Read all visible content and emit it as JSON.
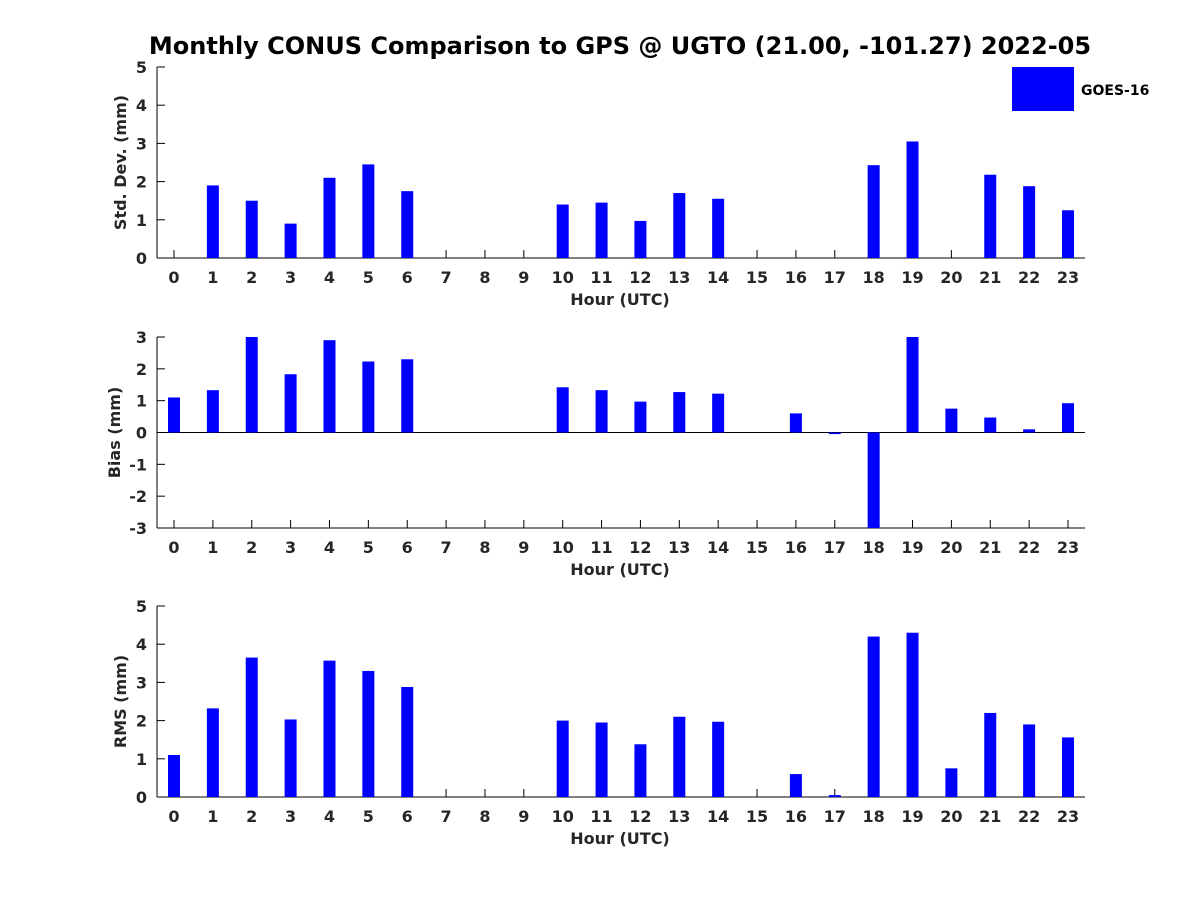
{
  "title": "Monthly CONUS Comparison to GPS @ UGTO (21.00, -101.27) 2022-05",
  "legend": {
    "label": "GOES-16",
    "color": "#0000ff"
  },
  "chart_data": [
    {
      "type": "bar",
      "xlabel": "Hour (UTC)",
      "ylabel": "Std. Dev. (mm)",
      "ylim": [
        0,
        5
      ],
      "yticks": [
        "0",
        "1",
        "2",
        "3",
        "4",
        "5"
      ],
      "categories": [
        "0",
        "1",
        "2",
        "3",
        "4",
        "5",
        "6",
        "7",
        "8",
        "9",
        "10",
        "11",
        "12",
        "13",
        "14",
        "15",
        "16",
        "17",
        "18",
        "19",
        "20",
        "21",
        "22",
        "23"
      ],
      "series": [
        {
          "name": "GOES-16",
          "values": [
            null,
            1.9,
            1.5,
            0.9,
            2.1,
            2.45,
            1.75,
            null,
            null,
            null,
            1.4,
            1.45,
            0.97,
            1.7,
            1.55,
            null,
            null,
            null,
            2.43,
            3.05,
            null,
            2.18,
            1.88,
            1.25
          ]
        }
      ]
    },
    {
      "type": "bar",
      "xlabel": "Hour (UTC)",
      "ylabel": "Bias (mm)",
      "ylim": [
        -3,
        3
      ],
      "yticks": [
        "-3",
        "-2",
        "-1",
        "0",
        "1",
        "2",
        "3"
      ],
      "categories": [
        "0",
        "1",
        "2",
        "3",
        "4",
        "5",
        "6",
        "7",
        "8",
        "9",
        "10",
        "11",
        "12",
        "13",
        "14",
        "15",
        "16",
        "17",
        "18",
        "19",
        "20",
        "21",
        "22",
        "23"
      ],
      "series": [
        {
          "name": "GOES-16",
          "values": [
            1.1,
            1.33,
            3.0,
            1.83,
            2.9,
            2.23,
            2.3,
            null,
            null,
            null,
            1.42,
            1.33,
            0.97,
            1.27,
            1.22,
            null,
            0.6,
            -0.05,
            -3.0,
            3.0,
            0.75,
            0.47,
            0.1,
            0.92
          ]
        }
      ]
    },
    {
      "type": "bar",
      "xlabel": "Hour (UTC)",
      "ylabel": "RMS (mm)",
      "ylim": [
        0,
        5
      ],
      "yticks": [
        "0",
        "1",
        "2",
        "3",
        "4",
        "5"
      ],
      "categories": [
        "0",
        "1",
        "2",
        "3",
        "4",
        "5",
        "6",
        "7",
        "8",
        "9",
        "10",
        "11",
        "12",
        "13",
        "14",
        "15",
        "16",
        "17",
        "18",
        "19",
        "20",
        "21",
        "22",
        "23"
      ],
      "series": [
        {
          "name": "GOES-16",
          "values": [
            1.1,
            2.32,
            3.65,
            2.03,
            3.57,
            3.3,
            2.88,
            null,
            null,
            null,
            2.0,
            1.95,
            1.38,
            2.1,
            1.97,
            null,
            0.6,
            0.05,
            4.2,
            4.3,
            0.75,
            2.2,
            1.9,
            1.56
          ]
        }
      ]
    }
  ]
}
